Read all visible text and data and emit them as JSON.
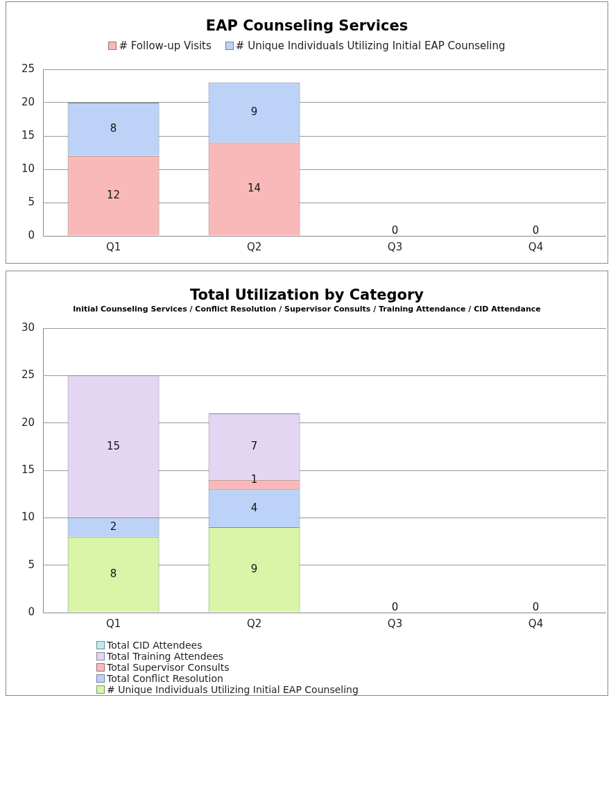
{
  "chart_data": [
    {
      "type": "bar",
      "title": "EAP Counseling Services",
      "categories": [
        "Q1",
        "Q2",
        "Q3",
        "Q4"
      ],
      "stacked": true,
      "data_labels": true,
      "legend": "top",
      "grid": "y",
      "ylim": [
        0,
        25
      ],
      "yticks": [
        0,
        5,
        10,
        15,
        20,
        25
      ],
      "series": [
        {
          "name": "# Follow-up Visits",
          "color": "#f9b9b9",
          "values": [
            12,
            14,
            0,
            0
          ]
        },
        {
          "name": "# Unique Individuals Utilizing Initial EAP Counseling",
          "color": "#bcd3f7",
          "values": [
            8,
            9,
            null,
            null
          ]
        }
      ]
    },
    {
      "type": "bar",
      "title": "Total Utilization by Category",
      "subtitle": "Initial Counseling Services / Conflict Resolution / Supervisor Consults / Training Attendance / CID Attendance",
      "categories": [
        "Q1",
        "Q2",
        "Q3",
        "Q4"
      ],
      "stacked": true,
      "data_labels": true,
      "legend": "bottom",
      "grid": "y",
      "ylim": [
        0,
        30
      ],
      "yticks": [
        0,
        5,
        10,
        15,
        20,
        25,
        30
      ],
      "series": [
        {
          "name": "# Unique Individuals Utilizing Initial EAP Counseling",
          "color": "#d8f5a8",
          "values": [
            8,
            9,
            0,
            0
          ]
        },
        {
          "name": "Total Conflict Resolution",
          "color": "#bcd3f7",
          "values": [
            2,
            4,
            null,
            null
          ]
        },
        {
          "name": "Total Supervisor Consults",
          "color": "#f9b9b9",
          "values": [
            null,
            1,
            null,
            null
          ]
        },
        {
          "name": "Total Training Attendees",
          "color": "#e3d6f3",
          "values": [
            15,
            7,
            null,
            null
          ]
        },
        {
          "name": "Total CID Attendees",
          "color": "#bfeaf5",
          "values": [
            null,
            null,
            null,
            null
          ]
        }
      ]
    }
  ]
}
